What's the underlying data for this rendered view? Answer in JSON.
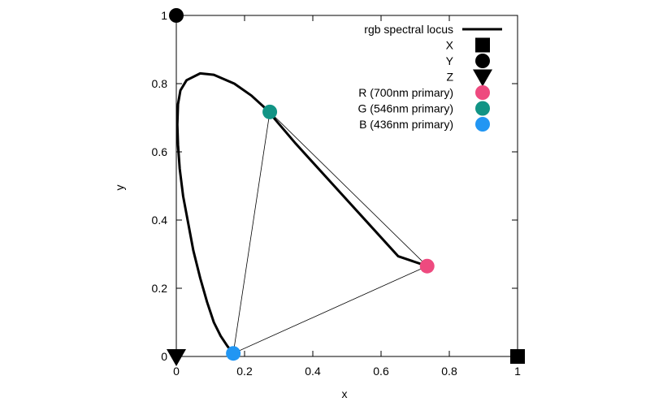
{
  "chart_data": {
    "type": "scatter",
    "xlabel": "x",
    "ylabel": "y",
    "xlim": [
      0,
      1
    ],
    "ylim": [
      0,
      1
    ],
    "x_ticks": [
      "0",
      "0.2",
      "0.4",
      "0.6",
      "0.8",
      "1"
    ],
    "y_ticks": [
      "0",
      "0.2",
      "0.4",
      "0.6",
      "0.8",
      "1"
    ],
    "grid": false,
    "legend_position": "top-right",
    "series": [
      {
        "name": "rgb spectral locus",
        "marker": "line",
        "color": "#000000",
        "x": [
          0.167,
          0.15,
          0.13,
          0.11,
          0.09,
          0.07,
          0.05,
          0.035,
          0.02,
          0.01,
          0.005,
          0.003,
          0.005,
          0.012,
          0.03,
          0.07,
          0.11,
          0.17,
          0.22,
          0.265,
          0.35,
          0.45,
          0.55,
          0.65,
          0.735
        ],
        "y": [
          0.009,
          0.03,
          0.06,
          0.1,
          0.16,
          0.23,
          0.31,
          0.39,
          0.47,
          0.55,
          0.62,
          0.68,
          0.74,
          0.78,
          0.81,
          0.83,
          0.826,
          0.8,
          0.765,
          0.724,
          0.624,
          0.514,
          0.404,
          0.294,
          0.265
        ]
      },
      {
        "name": "X",
        "marker": "square",
        "color": "#000000",
        "x": [
          1
        ],
        "y": [
          0
        ]
      },
      {
        "name": "Y",
        "marker": "circle",
        "color": "#000000",
        "x": [
          0
        ],
        "y": [
          1
        ]
      },
      {
        "name": "Z",
        "marker": "triangle-down",
        "color": "#000000",
        "x": [
          0
        ],
        "y": [
          0
        ]
      },
      {
        "name": "R (700nm primary)",
        "marker": "circle",
        "color": "#ee4a7f",
        "x": [
          0.735
        ],
        "y": [
          0.265
        ]
      },
      {
        "name": "G (546nm primary)",
        "marker": "circle",
        "color": "#119485",
        "x": [
          0.274
        ],
        "y": [
          0.717
        ]
      },
      {
        "name": "B (436nm primary)",
        "marker": "circle",
        "color": "#2196f3",
        "x": [
          0.167
        ],
        "y": [
          0.009
        ]
      }
    ],
    "gamut_triangle": {
      "color": "#000000",
      "points": [
        [
          0.735,
          0.265
        ],
        [
          0.274,
          0.717
        ],
        [
          0.167,
          0.009
        ]
      ]
    }
  }
}
